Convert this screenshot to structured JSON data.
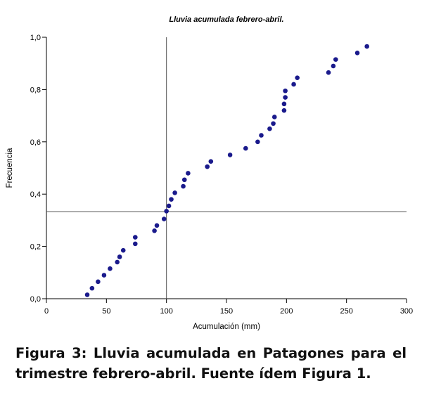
{
  "chart_data": {
    "type": "scatter",
    "title": "Lluvia acumulada febrero-abril.",
    "xlabel": "Acumulación (mm)",
    "ylabel": "Frecuencia",
    "xlim": [
      0,
      300
    ],
    "ylim": [
      0,
      1
    ],
    "xticks": [
      0,
      50,
      100,
      150,
      200,
      250,
      300
    ],
    "xtick_labels": [
      "0",
      "50",
      "100",
      "150",
      "200",
      "250",
      "300"
    ],
    "yticks": [
      0,
      0.2,
      0.4,
      0.6,
      0.8,
      1.0
    ],
    "ytick_labels": [
      "0,0",
      "0,2",
      "0,4",
      "0,6",
      "0,8",
      "1,0"
    ],
    "grid": false,
    "point_color": "#1a1a8c",
    "reference_lines": {
      "x": 100,
      "y": 0.333
    },
    "points": [
      {
        "x": 34,
        "y": 0.015
      },
      {
        "x": 38,
        "y": 0.04
      },
      {
        "x": 43,
        "y": 0.065
      },
      {
        "x": 48,
        "y": 0.09
      },
      {
        "x": 53,
        "y": 0.115
      },
      {
        "x": 59,
        "y": 0.14
      },
      {
        "x": 61,
        "y": 0.16
      },
      {
        "x": 64,
        "y": 0.185
      },
      {
        "x": 74,
        "y": 0.21
      },
      {
        "x": 74,
        "y": 0.235
      },
      {
        "x": 90,
        "y": 0.26
      },
      {
        "x": 92,
        "y": 0.28
      },
      {
        "x": 98,
        "y": 0.305
      },
      {
        "x": 100,
        "y": 0.335
      },
      {
        "x": 102,
        "y": 0.355
      },
      {
        "x": 104,
        "y": 0.38
      },
      {
        "x": 107,
        "y": 0.405
      },
      {
        "x": 114,
        "y": 0.43
      },
      {
        "x": 115,
        "y": 0.455
      },
      {
        "x": 118,
        "y": 0.48
      },
      {
        "x": 134,
        "y": 0.505
      },
      {
        "x": 137,
        "y": 0.525
      },
      {
        "x": 153,
        "y": 0.55
      },
      {
        "x": 166,
        "y": 0.575
      },
      {
        "x": 176,
        "y": 0.6
      },
      {
        "x": 179,
        "y": 0.625
      },
      {
        "x": 186,
        "y": 0.65
      },
      {
        "x": 189,
        "y": 0.67
      },
      {
        "x": 190,
        "y": 0.695
      },
      {
        "x": 198,
        "y": 0.72
      },
      {
        "x": 198,
        "y": 0.745
      },
      {
        "x": 199,
        "y": 0.77
      },
      {
        "x": 199,
        "y": 0.795
      },
      {
        "x": 206,
        "y": 0.82
      },
      {
        "x": 209,
        "y": 0.845
      },
      {
        "x": 235,
        "y": 0.865
      },
      {
        "x": 239,
        "y": 0.89
      },
      {
        "x": 241,
        "y": 0.915
      },
      {
        "x": 259,
        "y": 0.94
      },
      {
        "x": 267,
        "y": 0.965
      }
    ]
  },
  "caption": "Figura 3: Lluvia acumulada en Patagones para el trimestre febrero-abril. Fuente ídem Figura 1."
}
